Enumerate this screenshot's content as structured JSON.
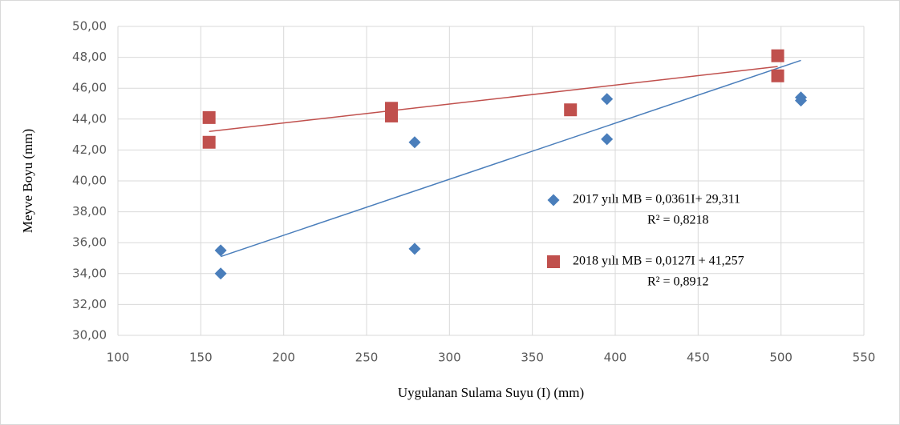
{
  "chart_data": {
    "type": "scatter",
    "xlabel": "Uygulanan Sulama Suyu (I) (mm)",
    "ylabel": "Meyve Boyu (mm)",
    "xlim": [
      100,
      550
    ],
    "xticks": [
      100,
      150,
      200,
      250,
      300,
      350,
      400,
      450,
      500,
      550
    ],
    "ylim": [
      30,
      50
    ],
    "yticks": [
      {
        "value": 30,
        "label": "30,00"
      },
      {
        "value": 32,
        "label": "32,00"
      },
      {
        "value": 34,
        "label": "34,00"
      },
      {
        "value": 36,
        "label": "36,00"
      },
      {
        "value": 38,
        "label": "38,00"
      },
      {
        "value": 40,
        "label": "40,00"
      },
      {
        "value": 42,
        "label": "42,00"
      },
      {
        "value": 44,
        "label": "44,00"
      },
      {
        "value": 46,
        "label": "46,00"
      },
      {
        "value": 48,
        "label": "48,00"
      },
      {
        "value": 50,
        "label": "50,00"
      }
    ],
    "grid": true,
    "series": [
      {
        "name": "2017 yılı MB = 0,0361I+ 29,311",
        "color": "#4a7ebb",
        "marker": "diamond",
        "x": [
          162,
          162,
          279,
          279,
          395,
          395,
          512,
          512
        ],
        "values": [
          35.5,
          34.0,
          42.5,
          35.6,
          45.3,
          42.7,
          45.4,
          45.2
        ]
      },
      {
        "name": "2018 yılı MB = 0,0127I + 41,257",
        "color": "#c0504d",
        "marker": "square",
        "x": [
          155,
          155,
          265,
          265,
          373,
          498,
          498
        ],
        "values": [
          44.1,
          42.5,
          44.7,
          44.2,
          44.6,
          48.1,
          46.8
        ]
      }
    ],
    "trendlines": [
      {
        "color": "#4a7ebb",
        "x": [
          162,
          512
        ],
        "values": [
          35.1,
          47.8
        ]
      },
      {
        "color": "#c0504d",
        "x": [
          155,
          498
        ],
        "values": [
          43.2,
          47.4
        ]
      }
    ],
    "annotations": [
      "R² = 0,8218",
      "R² = 0,8912"
    ]
  }
}
